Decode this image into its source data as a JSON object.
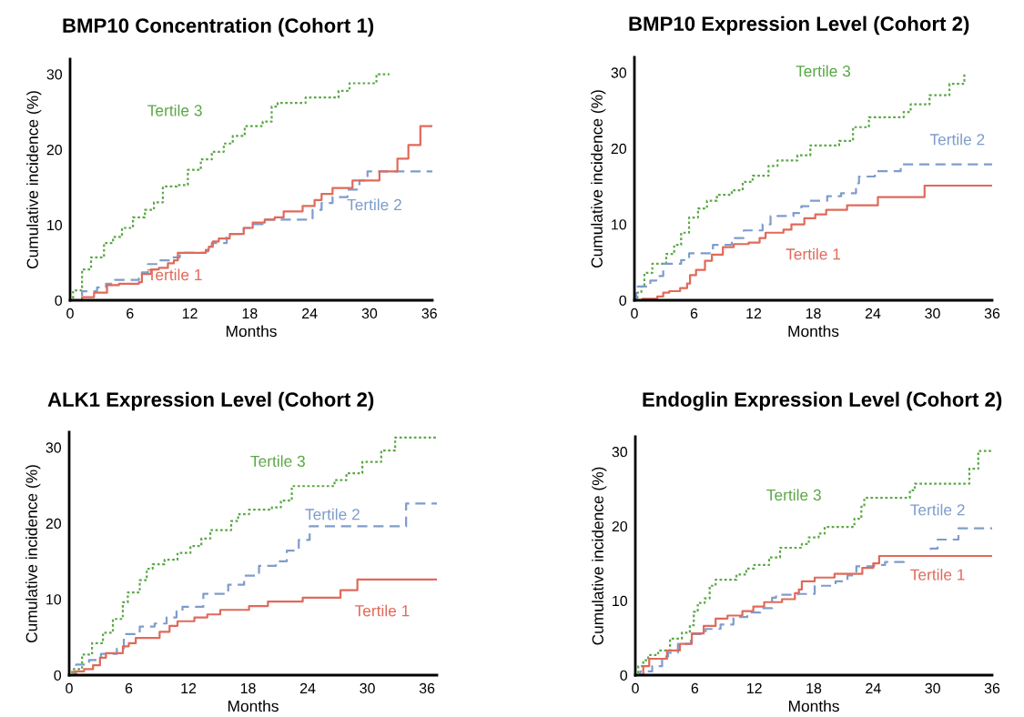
{
  "chart_data": [
    {
      "type": "step",
      "title": "BMP10 Concentration (Cohort 1)",
      "xlabel": "Months",
      "ylabel": "Cumulative incidence (%)",
      "xlim": [
        0,
        36.3
      ],
      "ylim": [
        0,
        32
      ],
      "xticks": [
        0,
        6,
        12,
        18,
        24,
        30,
        36
      ],
      "yticks": [
        0,
        10,
        20,
        30
      ],
      "grid": false,
      "legend": false,
      "series": [
        {
          "name": "Tertile 3",
          "color": "#5aa845",
          "line_style": "dotted",
          "x": [
            0,
            0.3,
            1.2,
            2.1,
            3.4,
            4.3,
            5.2,
            6.3,
            7.5,
            8.4,
            9.3,
            10.7,
            11.8,
            13.1,
            14.2,
            15.4,
            16.3,
            17.5,
            19.3,
            20.2,
            20.8,
            23.6,
            26.9,
            28,
            30.7,
            32
          ],
          "values": [
            0,
            1.3,
            4.1,
            5.7,
            7.6,
            8.4,
            9.6,
            11,
            12,
            13,
            15.1,
            15.3,
            17.3,
            18.7,
            19.7,
            20.8,
            21.8,
            23.1,
            23.7,
            25.7,
            26.2,
            26.9,
            27.8,
            28.8,
            30,
            30
          ]
        },
        {
          "name": "Tertile 2",
          "color": "#7f9ccc",
          "line_style": "dashed",
          "x": [
            0,
            1.2,
            2.7,
            3.6,
            4.5,
            6.9,
            7.2,
            7.8,
            8.9,
            10.2,
            11,
            13.6,
            14.2,
            15.7,
            17.4,
            18.1,
            19.3,
            24.3,
            25.2,
            26.3,
            27.8,
            29,
            29.8,
            36.3
          ],
          "values": [
            0,
            1.2,
            1.7,
            2.2,
            2.7,
            2.9,
            3.7,
            4.8,
            5.3,
            5.7,
            6.3,
            6.5,
            7.6,
            8.8,
            9.6,
            10.1,
            10.7,
            12,
            12.9,
            13.7,
            14.7,
            15.9,
            17.1,
            17.1
          ]
        },
        {
          "name": "Tertile 1",
          "color": "#e06a5a",
          "line_style": "solid",
          "x": [
            0,
            1.2,
            2.4,
            3.7,
            4.9,
            6.9,
            7.2,
            8.1,
            8.9,
            9.8,
            10.4,
            10.8,
            13.6,
            13.9,
            14.3,
            14.9,
            16,
            17.4,
            18.3,
            19.5,
            20.5,
            21.4,
            23.3,
            24.5,
            25.2,
            26.3,
            28.3,
            31,
            32.8,
            33.9,
            35.1,
            36.3
          ],
          "values": [
            0,
            0.4,
            1,
            2,
            2.2,
            2.4,
            3.5,
            4.1,
            4.3,
            4.9,
            5.3,
            6.3,
            6.7,
            7.1,
            7.8,
            8.2,
            8.8,
            9.6,
            10.3,
            10.7,
            11,
            11.8,
            12.5,
            13.3,
            14.1,
            14.9,
            15.9,
            17.1,
            18.8,
            20.6,
            23.1,
            23.1
          ]
        }
      ]
    },
    {
      "type": "step",
      "title": "BMP10 Expression Level (Cohort 2)",
      "xlabel": "Months",
      "ylabel": "Cumulative incidence (%)",
      "xlim": [
        0,
        36
      ],
      "ylim": [
        0,
        32
      ],
      "xticks": [
        0,
        6,
        12,
        18,
        24,
        30,
        36
      ],
      "yticks": [
        0,
        10,
        20,
        30
      ],
      "grid": false,
      "legend": false,
      "series": [
        {
          "name": "Tertile 3",
          "color": "#5aa845",
          "line_style": "dotted",
          "x": [
            0,
            0.3,
            0.7,
            1,
            1.8,
            3.2,
            4,
            4.7,
            5.5,
            6.4,
            7.3,
            8.3,
            9.8,
            10.9,
            11.9,
            13.5,
            14.4,
            16.4,
            17.7,
            20.6,
            22,
            23.6,
            27.1,
            27.8,
            29.7,
            31.7,
            33.2
          ],
          "values": [
            0,
            1,
            1.8,
            3.6,
            4.8,
            6.1,
            7.3,
            8.9,
            10.9,
            12.1,
            13.1,
            13.9,
            14.5,
            15.6,
            16.4,
            17.7,
            18.4,
            19.1,
            20.4,
            21,
            22.8,
            24.1,
            24.8,
            25.8,
            27,
            28.5,
            29.8
          ]
        },
        {
          "name": "Tertile 2",
          "color": "#7f9ccc",
          "line_style": "dashed",
          "x": [
            0,
            0.2,
            1.2,
            1.6,
            2.2,
            2.9,
            4.7,
            5.5,
            7.9,
            9.8,
            11,
            12.9,
            13.7,
            16,
            16.8,
            17.6,
            19.4,
            20.8,
            22.3,
            22.6,
            24.2,
            26.8,
            36
          ],
          "values": [
            0,
            1.8,
            1.8,
            2.6,
            3.2,
            4.8,
            5.3,
            6.2,
            7.3,
            8.2,
            9.2,
            10,
            11.1,
            11.5,
            12.4,
            13.1,
            13.7,
            14.1,
            15.4,
            16.3,
            17,
            17.9,
            17.9
          ]
        },
        {
          "name": "Tertile 1",
          "color": "#e06a5a",
          "line_style": "solid",
          "x": [
            0,
            0.8,
            2.3,
            2.9,
            3.5,
            4.6,
            5.3,
            5.6,
            6.2,
            7.1,
            7.8,
            8.9,
            10,
            11.5,
            12.6,
            13.2,
            15,
            15.8,
            17.1,
            18.2,
            19.3,
            21.4,
            24.5,
            29.2,
            36
          ],
          "values": [
            0,
            0.2,
            0.5,
            1,
            1.2,
            1.6,
            2.2,
            3.3,
            4,
            5.2,
            6,
            7,
            7.4,
            7.6,
            8.2,
            8.9,
            9.3,
            10,
            10.8,
            11.3,
            11.9,
            12.5,
            13.6,
            15.1,
            15.1
          ]
        }
      ]
    },
    {
      "type": "step",
      "title": "ALK1 Expression Level (Cohort 2)",
      "xlabel": "Months",
      "ylabel": "Cumulative incidence (%)",
      "xlim": [
        0,
        37
      ],
      "ylim": [
        0,
        32
      ],
      "xticks": [
        0,
        6,
        12,
        18,
        24,
        30,
        36
      ],
      "yticks": [
        0,
        10,
        20,
        30
      ],
      "grid": false,
      "legend": false,
      "series": [
        {
          "name": "Tertile 3",
          "color": "#5aa845",
          "line_style": "dotted",
          "x": [
            0,
            0.3,
            1.3,
            2.3,
            3.4,
            4.4,
            5.4,
            5.9,
            7.1,
            7.8,
            8.4,
            9.6,
            10.9,
            12.2,
            13.3,
            14.2,
            16.3,
            17,
            18.1,
            20.4,
            21.3,
            22.4,
            26.7,
            27.9,
            29.5,
            31.4,
            32.8,
            37
          ],
          "values": [
            0,
            0.8,
            2.7,
            4.2,
            5.6,
            7.4,
            9.6,
            10.9,
            12.5,
            14,
            14.6,
            15.2,
            16.1,
            17,
            18,
            19.1,
            20.3,
            21.2,
            21.8,
            22.1,
            23,
            24.9,
            25.7,
            26.6,
            28.1,
            29.6,
            31.3,
            31.3
          ]
        },
        {
          "name": "Tertile 2",
          "color": "#7f9ccc",
          "line_style": "dashed",
          "x": [
            0,
            0.7,
            2,
            3.2,
            4.8,
            5.5,
            7.1,
            8.6,
            9.8,
            10.8,
            11.4,
            13.5,
            16,
            17.6,
            19.1,
            20.8,
            21.9,
            23.1,
            24.2,
            33.9,
            37
          ],
          "values": [
            0,
            1.4,
            2,
            2.8,
            3.5,
            5.4,
            6.4,
            6.8,
            7.6,
            8.4,
            9,
            10.7,
            11.9,
            13.1,
            14.4,
            15,
            16.4,
            17.8,
            19.6,
            22.6,
            22.6
          ]
        },
        {
          "name": "Tertile 1",
          "color": "#e06a5a",
          "line_style": "solid",
          "x": [
            0,
            0.5,
            1.5,
            2.4,
            3.1,
            3.7,
            5.4,
            6,
            6.7,
            9.1,
            10.1,
            10.9,
            12.6,
            13.9,
            15.2,
            18.1,
            20,
            23.5,
            27.3,
            29,
            37
          ],
          "values": [
            0,
            0.5,
            0.8,
            1.3,
            2.3,
            2.9,
            3.8,
            4.2,
            4.9,
            5.7,
            6.5,
            7.1,
            7.6,
            8,
            8.6,
            9.1,
            9.7,
            10.2,
            11.2,
            12.6,
            12.6
          ]
        }
      ]
    },
    {
      "type": "step",
      "title": "Endoglin Expression Level (Cohort 2)",
      "xlabel": "Months",
      "ylabel": "Cumulative incidence (%)",
      "xlim": [
        0,
        36
      ],
      "ylim": [
        0,
        32
      ],
      "xticks": [
        0,
        6,
        12,
        18,
        24,
        30,
        36
      ],
      "yticks": [
        0,
        10,
        20,
        30
      ],
      "grid": false,
      "legend": false,
      "series": [
        {
          "name": "Tertile 3",
          "color": "#5aa845",
          "line_style": "dotted",
          "x": [
            0,
            0.3,
            0.8,
            1.3,
            2.3,
            3.5,
            4.7,
            5.5,
            5.9,
            6.3,
            7,
            7.5,
            8.1,
            10.2,
            11.2,
            12,
            13.5,
            14.6,
            16.8,
            17.5,
            18.5,
            19.1,
            22.1,
            22.8,
            23.1,
            27.7,
            28.2,
            33.7,
            34.6,
            36
          ],
          "values": [
            0,
            1.2,
            2,
            2.7,
            3.3,
            4.9,
            5.7,
            6.7,
            8.5,
            9.7,
            10.3,
            12,
            12.8,
            13.5,
            14.3,
            14.8,
            15.8,
            17.1,
            17.6,
            18.5,
            19,
            19.9,
            21,
            22.6,
            23.8,
            24.8,
            25.7,
            27.7,
            30.1,
            30.1
          ]
        },
        {
          "name": "Tertile 2",
          "color": "#7f9ccc",
          "line_style": "dashed",
          "x": [
            0,
            0.5,
            1.7,
            2.7,
            3.3,
            4.3,
            5.6,
            7.1,
            8.6,
            9.9,
            11.3,
            12.6,
            13.8,
            14.2,
            16.4,
            18.1,
            20.2,
            21.4,
            22.3,
            24.1,
            25.2,
            27.1,
            29.8,
            30.5,
            32.6,
            36
          ],
          "values": [
            0,
            0.5,
            1.2,
            2.5,
            3,
            4.2,
            5.5,
            6.2,
            6.8,
            7.8,
            8.4,
            9,
            10.4,
            10.8,
            10.9,
            12,
            12.6,
            13.4,
            14.6,
            14.8,
            15.2,
            16,
            17,
            18.2,
            19.7,
            19.7
          ]
        },
        {
          "name": "Tertile 1",
          "color": "#e06a5a",
          "line_style": "solid",
          "x": [
            0,
            0.8,
            1.4,
            3.2,
            4.5,
            5.7,
            6.9,
            8.1,
            9.3,
            10.8,
            11.9,
            13,
            14.8,
            16.1,
            16.5,
            16.8,
            18.1,
            20.1,
            22.9,
            24,
            24.6,
            36
          ],
          "values": [
            0,
            1.2,
            2.2,
            3.3,
            4.2,
            5.6,
            6.6,
            7.6,
            8,
            8.6,
            9.2,
            9.8,
            10.2,
            11,
            11.5,
            12.6,
            13.1,
            13.6,
            14.4,
            15,
            16,
            16
          ]
        }
      ]
    }
  ]
}
